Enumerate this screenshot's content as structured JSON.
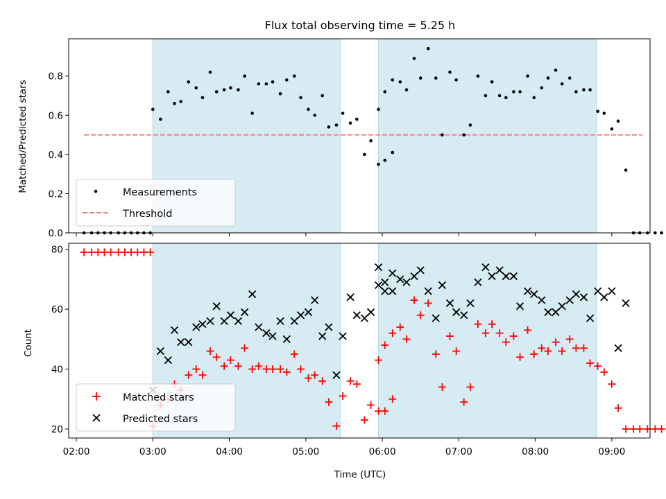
{
  "title": "Flux total observing time = 5.25 h",
  "colors": {
    "shade": "#add8e6",
    "threshold": "#f08080",
    "matched": "#ff0000",
    "predicted": "#000000",
    "measurement": "#000000"
  },
  "chart_data": [
    {
      "type": "scatter",
      "ylabel": "Matched/Predicted stars",
      "ylim": [
        0,
        0.99
      ],
      "yticks": [
        0.0,
        0.2,
        0.4,
        0.6,
        0.8
      ],
      "ytick_labels": [
        "0.0",
        "0.2",
        "0.4",
        "0.6",
        "0.8"
      ],
      "legend_position": "lower-left",
      "threshold": 0.5,
      "threshold_range": [
        "02:06",
        "09:24"
      ],
      "shaded_intervals": [
        [
          "03:00",
          "05:27"
        ],
        [
          "05:57",
          "08:48"
        ]
      ],
      "series": [
        {
          "name": "Measurements",
          "marker": "dot",
          "points": [
            [
              "02:06",
              0
            ],
            [
              "02:12",
              0
            ],
            [
              "02:17",
              0
            ],
            [
              "02:22",
              0
            ],
            [
              "02:27",
              0
            ],
            [
              "02:33",
              0
            ],
            [
              "02:38",
              0
            ],
            [
              "02:43",
              0
            ],
            [
              "02:48",
              0
            ],
            [
              "02:53",
              0
            ],
            [
              "02:58",
              0
            ],
            [
              "03:00",
              0.63
            ],
            [
              "03:06",
              0.58
            ],
            [
              "03:12",
              0.72
            ],
            [
              "03:17",
              0.66
            ],
            [
              "03:22",
              0.67
            ],
            [
              "03:28",
              0.77
            ],
            [
              "03:34",
              0.74
            ],
            [
              "03:39",
              0.69
            ],
            [
              "03:45",
              0.82
            ],
            [
              "03:50",
              0.72
            ],
            [
              "03:56",
              0.73
            ],
            [
              "04:01",
              0.74
            ],
            [
              "04:07",
              0.73
            ],
            [
              "04:12",
              0.8
            ],
            [
              "04:18",
              0.61
            ],
            [
              "04:23",
              0.76
            ],
            [
              "04:29",
              0.76
            ],
            [
              "04:34",
              0.77
            ],
            [
              "04:40",
              0.71
            ],
            [
              "04:45",
              0.78
            ],
            [
              "04:51",
              0.8
            ],
            [
              "04:56",
              0.69
            ],
            [
              "05:02",
              0.63
            ],
            [
              "05:07",
              0.6
            ],
            [
              "05:13",
              0.7
            ],
            [
              "05:18",
              0.54
            ],
            [
              "05:24",
              0.55
            ],
            [
              "05:29",
              0.61
            ],
            [
              "05:35",
              0.56
            ],
            [
              "05:40",
              0.58
            ],
            [
              "05:46",
              0.4
            ],
            [
              "05:51",
              0.47
            ],
            [
              "05:57",
              0.35
            ],
            [
              "06:02",
              0.37
            ],
            [
              "06:08",
              0.41
            ],
            [
              "05:57",
              0.63
            ],
            [
              "06:02",
              0.72
            ],
            [
              "06:08",
              0.78
            ],
            [
              "06:14",
              0.77
            ],
            [
              "06:19",
              0.73
            ],
            [
              "06:25",
              0.89
            ],
            [
              "06:30",
              0.79
            ],
            [
              "06:36",
              0.94
            ],
            [
              "06:42",
              0.79
            ],
            [
              "06:47",
              0.5
            ],
            [
              "06:53",
              0.82
            ],
            [
              "06:58",
              0.78
            ],
            [
              "07:04",
              0.5
            ],
            [
              "07:09",
              0.55
            ],
            [
              "07:15",
              0.8
            ],
            [
              "07:21",
              0.7
            ],
            [
              "07:26",
              0.77
            ],
            [
              "07:32",
              0.7
            ],
            [
              "07:37",
              0.69
            ],
            [
              "07:43",
              0.72
            ],
            [
              "07:48",
              0.72
            ],
            [
              "07:54",
              0.8
            ],
            [
              "07:59",
              0.69
            ],
            [
              "08:05",
              0.74
            ],
            [
              "08:10",
              0.79
            ],
            [
              "08:16",
              0.83
            ],
            [
              "08:21",
              0.76
            ],
            [
              "08:27",
              0.79
            ],
            [
              "08:32",
              0.72
            ],
            [
              "08:38",
              0.73
            ],
            [
              "08:43",
              0.73
            ],
            [
              "08:49",
              0.62
            ],
            [
              "08:54",
              0.61
            ],
            [
              "09:00",
              0.53
            ],
            [
              "09:05",
              0.57
            ],
            [
              "09:11",
              0.32
            ],
            [
              "09:17",
              0
            ],
            [
              "09:22",
              0
            ],
            [
              "09:28",
              0
            ],
            [
              "09:34",
              0
            ],
            [
              "09:39",
              0
            ]
          ]
        },
        {
          "name": "Threshold",
          "marker": "dashed-line",
          "value": 0.5
        }
      ]
    },
    {
      "type": "scatter",
      "xlabel": "Time (UTC)",
      "ylabel": "Count",
      "ylim": [
        17,
        82
      ],
      "yticks": [
        20,
        40,
        60,
        80
      ],
      "ytick_labels": [
        "20",
        "40",
        "60",
        "80"
      ],
      "xlim": [
        "01:54",
        "09:30"
      ],
      "xticks": [
        "02:00",
        "03:00",
        "04:00",
        "05:00",
        "06:00",
        "07:00",
        "08:00",
        "09:00"
      ],
      "xtick_labels": [
        "02:00",
        "03:00",
        "04:00",
        "05:00",
        "06:00",
        "07:00",
        "08:00",
        "09:00"
      ],
      "legend_position": "lower-left",
      "shaded_intervals": [
        [
          "03:00",
          "05:27"
        ],
        [
          "05:57",
          "08:48"
        ]
      ],
      "series": [
        {
          "name": "Matched stars",
          "marker": "plus",
          "points": [
            [
              "02:06",
              79
            ],
            [
              "02:12",
              79
            ],
            [
              "02:17",
              79
            ],
            [
              "02:22",
              79
            ],
            [
              "02:27",
              79
            ],
            [
              "02:33",
              79
            ],
            [
              "02:38",
              79
            ],
            [
              "02:43",
              79
            ],
            [
              "02:48",
              79
            ],
            [
              "02:53",
              79
            ],
            [
              "02:58",
              79
            ],
            [
              "03:00",
              21
            ],
            [
              "03:06",
              28
            ],
            [
              "03:12",
              30
            ],
            [
              "03:17",
              35
            ],
            [
              "03:22",
              33
            ],
            [
              "03:28",
              38
            ],
            [
              "03:34",
              40
            ],
            [
              "03:39",
              38
            ],
            [
              "03:45",
              46
            ],
            [
              "03:50",
              44
            ],
            [
              "03:56",
              41
            ],
            [
              "04:01",
              43
            ],
            [
              "04:07",
              41
            ],
            [
              "04:12",
              47
            ],
            [
              "04:18",
              40
            ],
            [
              "04:23",
              41
            ],
            [
              "04:29",
              40
            ],
            [
              "04:34",
              40
            ],
            [
              "04:40",
              40
            ],
            [
              "04:45",
              39
            ],
            [
              "04:51",
              45
            ],
            [
              "04:56",
              40
            ],
            [
              "05:02",
              37
            ],
            [
              "05:07",
              38
            ],
            [
              "05:13",
              36
            ],
            [
              "05:18",
              29
            ],
            [
              "05:24",
              21
            ],
            [
              "05:29",
              31
            ],
            [
              "05:35",
              36
            ],
            [
              "05:40",
              35
            ],
            [
              "05:46",
              23
            ],
            [
              "05:51",
              28
            ],
            [
              "05:57",
              26
            ],
            [
              "06:02",
              26
            ],
            [
              "06:08",
              30
            ],
            [
              "05:57",
              43
            ],
            [
              "06:02",
              48
            ],
            [
              "06:08",
              52
            ],
            [
              "06:14",
              54
            ],
            [
              "06:19",
              50
            ],
            [
              "06:25",
              63
            ],
            [
              "06:30",
              58
            ],
            [
              "06:36",
              62
            ],
            [
              "06:42",
              45
            ],
            [
              "06:47",
              34
            ],
            [
              "06:53",
              51
            ],
            [
              "06:58",
              46
            ],
            [
              "07:04",
              29
            ],
            [
              "07:09",
              34
            ],
            [
              "07:15",
              55
            ],
            [
              "07:21",
              52
            ],
            [
              "07:26",
              55
            ],
            [
              "07:32",
              52
            ],
            [
              "07:37",
              49
            ],
            [
              "07:43",
              51
            ],
            [
              "07:48",
              44
            ],
            [
              "07:54",
              53
            ],
            [
              "07:59",
              45
            ],
            [
              "08:05",
              47
            ],
            [
              "08:10",
              46
            ],
            [
              "08:16",
              49
            ],
            [
              "08:21",
              46
            ],
            [
              "08:27",
              50
            ],
            [
              "08:32",
              47
            ],
            [
              "08:38",
              47
            ],
            [
              "08:43",
              42
            ],
            [
              "08:49",
              41
            ],
            [
              "08:54",
              39
            ],
            [
              "09:00",
              35
            ],
            [
              "09:05",
              27
            ],
            [
              "09:11",
              20
            ],
            [
              "09:17",
              20
            ],
            [
              "09:22",
              20
            ],
            [
              "09:28",
              20
            ],
            [
              "09:34",
              20
            ],
            [
              "09:39",
              20
            ]
          ]
        },
        {
          "name": "Predicted stars",
          "marker": "cross",
          "points": [
            [
              "03:00",
              33
            ],
            [
              "03:06",
              46
            ],
            [
              "03:12",
              43
            ],
            [
              "03:17",
              53
            ],
            [
              "03:22",
              49
            ],
            [
              "03:28",
              49
            ],
            [
              "03:34",
              54
            ],
            [
              "03:39",
              55
            ],
            [
              "03:45",
              56
            ],
            [
              "03:50",
              61
            ],
            [
              "03:56",
              56
            ],
            [
              "04:01",
              58
            ],
            [
              "04:07",
              56
            ],
            [
              "04:12",
              59
            ],
            [
              "04:18",
              65
            ],
            [
              "04:23",
              54
            ],
            [
              "04:29",
              52
            ],
            [
              "04:34",
              51
            ],
            [
              "04:40",
              56
            ],
            [
              "04:45",
              50
            ],
            [
              "04:51",
              56
            ],
            [
              "04:56",
              58
            ],
            [
              "05:02",
              59
            ],
            [
              "05:07",
              63
            ],
            [
              "05:13",
              51
            ],
            [
              "05:18",
              54
            ],
            [
              "05:24",
              38
            ],
            [
              "05:29",
              51
            ],
            [
              "05:35",
              64
            ],
            [
              "05:40",
              58
            ],
            [
              "05:46",
              57
            ],
            [
              "05:51",
              59
            ],
            [
              "05:57",
              74
            ],
            [
              "06:02",
              69
            ],
            [
              "06:08",
              72
            ],
            [
              "05:57",
              68
            ],
            [
              "06:02",
              66
            ],
            [
              "06:08",
              66
            ],
            [
              "06:14",
              70
            ],
            [
              "06:19",
              69
            ],
            [
              "06:25",
              71
            ],
            [
              "06:30",
              73
            ],
            [
              "06:36",
              66
            ],
            [
              "06:42",
              57
            ],
            [
              "06:47",
              68
            ],
            [
              "06:53",
              62
            ],
            [
              "06:58",
              59
            ],
            [
              "07:04",
              58
            ],
            [
              "07:09",
              62
            ],
            [
              "07:15",
              69
            ],
            [
              "07:21",
              74
            ],
            [
              "07:26",
              71
            ],
            [
              "07:32",
              73
            ],
            [
              "07:37",
              71
            ],
            [
              "07:43",
              71
            ],
            [
              "07:48",
              61
            ],
            [
              "07:54",
              66
            ],
            [
              "07:59",
              65
            ],
            [
              "08:05",
              63
            ],
            [
              "08:10",
              59
            ],
            [
              "08:16",
              59
            ],
            [
              "08:21",
              61
            ],
            [
              "08:27",
              63
            ],
            [
              "08:32",
              65
            ],
            [
              "08:38",
              64
            ],
            [
              "08:43",
              57
            ],
            [
              "08:49",
              66
            ],
            [
              "08:54",
              64
            ],
            [
              "09:00",
              66
            ],
            [
              "09:05",
              47
            ],
            [
              "09:11",
              62
            ]
          ]
        }
      ]
    }
  ]
}
